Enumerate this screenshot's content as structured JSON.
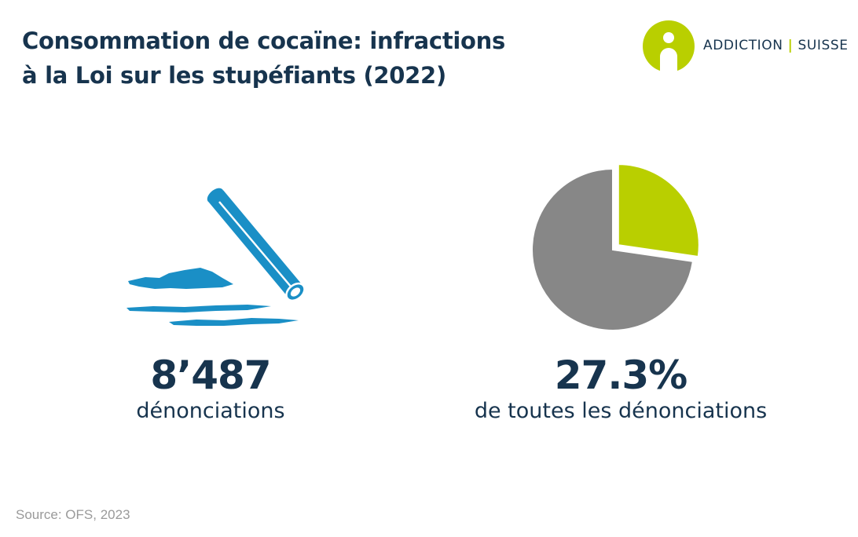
{
  "title": {
    "line1": "Consommation de cocaïne: infractions",
    "line2": "à la Loi sur les stupéfiants (2022)"
  },
  "logo": {
    "left": "ADDICTION",
    "separator": "|",
    "right": "SUISSE",
    "colors": {
      "mark": "#b9cf00",
      "text": "#17344e"
    }
  },
  "stats": {
    "count": {
      "value": "8’487",
      "label": "dénonciations",
      "icon": "cocaine-line-straw-icon"
    },
    "share": {
      "value": "27.3%",
      "label": "de toutes les dénonciations"
    }
  },
  "chart_data": {
    "type": "pie",
    "slices": [
      {
        "value": 27.3,
        "color": "#b9cf00",
        "exploded": true
      },
      {
        "value": 72.7,
        "color": "#878787",
        "exploded": false
      }
    ]
  },
  "source": "Source: OFS, 2023",
  "colors": {
    "title": "#17344e",
    "accent_green": "#b9cf00",
    "pie_gray": "#878787",
    "illustration_blue": "#1a8fc6",
    "source_gray": "#9a9a9a"
  }
}
